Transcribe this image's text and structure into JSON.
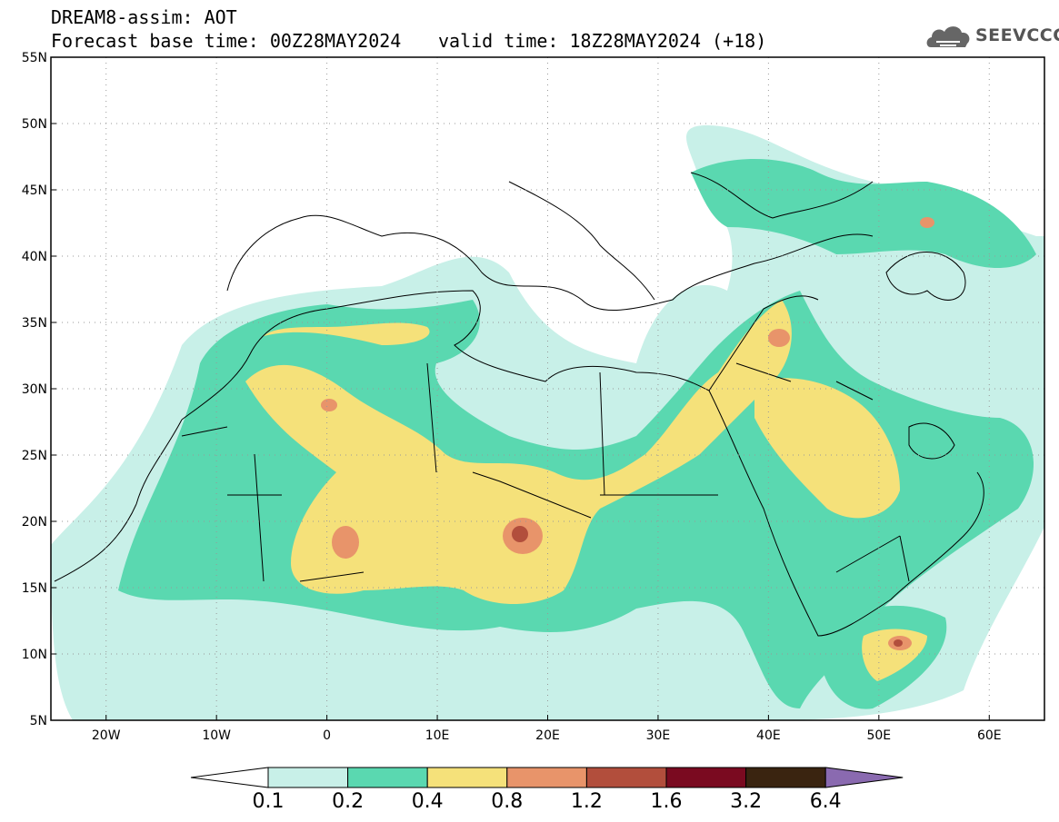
{
  "header": {
    "title": "DREAM8-assim: AOT",
    "base_time": "Forecast base time: 00Z28MAY2024",
    "valid_time": "valid time: 18Z28MAY2024 (+18)",
    "logo_text": "SEEVCCC"
  },
  "map": {
    "lon_range": [
      -25,
      65
    ],
    "lat_range": [
      5,
      55
    ],
    "lat_labels": [
      "55N",
      "50N",
      "45N",
      "40N",
      "35N",
      "30N",
      "25N",
      "20N",
      "15N",
      "10N",
      "5N"
    ],
    "lon_labels": [
      "20W",
      "10W",
      "0",
      "10E",
      "20E",
      "30E",
      "40E",
      "50E",
      "60E"
    ],
    "grid": true
  },
  "colorbar": {
    "levels": [
      "0.1",
      "0.2",
      "0.4",
      "0.8",
      "1.2",
      "1.6",
      "3.2",
      "6.4"
    ],
    "colors": [
      "#c8f0e8",
      "#5ad8b0",
      "#f5e17a",
      "#e8946a",
      "#b24e3c",
      "#7a0a20",
      "#3a2410",
      "#8a6ab0"
    ]
  }
}
